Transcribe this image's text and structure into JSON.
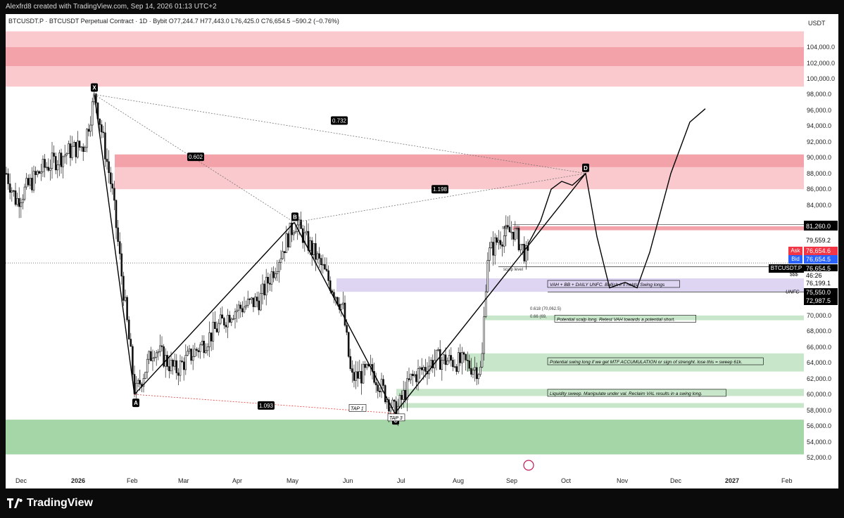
{
  "header": {
    "credit": "Alexfrd8 created with TradingView.com, Sep 14, 2026 01:13 UTC+2"
  },
  "chart_header": {
    "symbol_line": "BTCUSDT.P · BTCUSDT Perpetual Contract · 1D · Bybit  O77,244.7  H77,443.0  L76,425.0  C76,654.5  −590.2 (−0.76%)"
  },
  "price_axis": {
    "currency": "USDT",
    "ticks": [
      "104,000.0",
      "102,000.0",
      "100,000.0",
      "98,000.0",
      "96,000.0",
      "94,000.0",
      "92,000.0",
      "90,000.0",
      "88,000.0",
      "86,000.0",
      "84,000.0",
      "70,000.0",
      "68,000.0",
      "66,000.0",
      "64,000.0",
      "62,000.0",
      "60,000.0",
      "58,000.0",
      "56,000.0",
      "54,000.0",
      "52,000.0"
    ],
    "tags": [
      {
        "label": "81,499.9",
        "price": 81499.9,
        "bg": "#000000",
        "fg": "#ffffff"
      },
      {
        "label": "81,260.0",
        "price": 81260.0,
        "bg": "#000000",
        "fg": "#ffffff"
      },
      {
        "label": "79,559.2",
        "price": 79559.2,
        "bg": "#ffffff",
        "fg": "#000000"
      },
      {
        "label": "Ask",
        "price": 78200,
        "bg": "#f23645",
        "fg": "#ffffff",
        "value": "76,654.6"
      },
      {
        "label": "Bid",
        "price": 77100,
        "bg": "#2962ff",
        "fg": "#ffffff",
        "value": "76,654.5"
      },
      {
        "label": "76,654.5",
        "price": 76000,
        "bg": "#000000",
        "fg": "#ffffff"
      },
      {
        "label": "46:26",
        "price": 75050,
        "bg": "#ffffff",
        "fg": "#000000"
      },
      {
        "label": "76,199.1",
        "price": 74100,
        "bg": "#ffffff",
        "fg": "#000000"
      },
      {
        "label": "75,550.0",
        "price": 72950,
        "bg": "#000000",
        "fg": "#ffffff"
      },
      {
        "label": "72,987.5",
        "price": 71850,
        "bg": "#000000",
        "fg": "#ffffff"
      }
    ],
    "symbol_tag": "BTCUSDT.P"
  },
  "time_axis": {
    "labels": [
      "Dec",
      "2026",
      "Feb",
      "Mar",
      "Apr",
      "May",
      "Jun",
      "Jul",
      "Aug",
      "Sep",
      "Oct",
      "Nov",
      "Dec",
      "2027",
      "Feb"
    ]
  },
  "annotations": {
    "pattern_points": [
      "X",
      "A",
      "B",
      "C",
      "D"
    ],
    "ratios": [
      "0.602",
      "0.732",
      "1.198",
      "1.093"
    ],
    "taps": [
      "TAP 1",
      "TAP 3"
    ],
    "zone_notes": [
      "VAH + BB + DAILY UNFC. Bullish if it holds. Swing longs",
      "Potential scalp long. Retest VAH towards a potential short.",
      "Potential swing long if we get MTF ACCUMULATION or sign of strenght. lose this = sweep 61k.",
      "Liquidity sweep. Manipulate under val. Reclaim VAL results in a swing long."
    ],
    "fib_618": "0.618 (70,062.5)",
    "fib_66": "0.66 (69,",
    "unfc": "UNFC",
    "sss": "$$$",
    "sfp": "sfp",
    "scalp_level": "scalp level"
  },
  "chart_data": {
    "type": "candlestick",
    "ticker": "BTCUSDT.P",
    "timeframe": "1D",
    "exchange": "Bybit",
    "last_bar": {
      "open": 77244.7,
      "high": 77443.0,
      "low": 76425.0,
      "close": 76654.5,
      "change": -590.2,
      "change_pct": -0.76
    },
    "y_range": [
      50500,
      106500
    ],
    "months": [
      "Dec",
      "2026",
      "Feb",
      "Mar",
      "Apr",
      "May",
      "Jun",
      "Jul",
      "Aug",
      "Sep",
      "Oct",
      "Nov",
      "Dec",
      "2027",
      "Feb"
    ],
    "price_path": [
      [
        "Dec",
        88000
      ],
      [
        "Dec",
        85000
      ],
      [
        "2026",
        89000
      ],
      [
        "2026",
        92000
      ],
      [
        "2026",
        90500
      ],
      [
        "2026",
        98000
      ],
      [
        "Feb",
        87000
      ],
      [
        "Feb",
        60000
      ],
      [
        "Feb",
        65000
      ],
      [
        "Mar",
        62000
      ],
      [
        "Mar",
        66000
      ],
      [
        "Apr",
        70000
      ],
      [
        "Apr",
        71000
      ],
      [
        "May",
        81800
      ],
      [
        "May",
        77000
      ],
      [
        "Jun",
        70000
      ],
      [
        "Jun",
        62000
      ],
      [
        "Jul",
        58000
      ],
      [
        "Jul",
        60000
      ],
      [
        "Jul",
        63000
      ],
      [
        "Aug",
        64000
      ],
      [
        "Aug",
        63500
      ],
      [
        "Aug",
        77000
      ],
      [
        "Sep",
        79000
      ],
      [
        "Sep",
        76654.5
      ]
    ],
    "harmonic": {
      "X": 98000,
      "A": 60000,
      "B": 81800,
      "C": 57600,
      "D": 88000,
      "ratios": {
        "XB": 0.602,
        "XD": 0.732,
        "BD": 1.198,
        "AC": 1.093
      }
    },
    "zones": [
      {
        "name": "supply-outer",
        "low": 99000,
        "high": 106000,
        "color": "#f9c9ce"
      },
      {
        "name": "supply-inner",
        "low": 101600,
        "high": 104000,
        "color": "#f4a2aa"
      },
      {
        "name": "pattern-zone-outer",
        "low": 86000,
        "high": 90400,
        "color": "#f9c9ce"
      },
      {
        "name": "pattern-zone-inner",
        "low": 88800,
        "high": 90400,
        "color": "#f4a2aa"
      },
      {
        "name": "sfp-level",
        "low": 80800,
        "high": 81300,
        "color": "#f4a2aa"
      },
      {
        "name": "vah-zone",
        "low": 73000,
        "high": 74700,
        "color": "#ddd5f2"
      },
      {
        "name": "scalp-long",
        "low": 69400,
        "high": 70000,
        "color": "#c8e6c9"
      },
      {
        "name": "swing-long",
        "low": 62900,
        "high": 65200,
        "color": "#c8e6c9"
      },
      {
        "name": "liquidity-sweep",
        "low": 59800,
        "high": 60700,
        "color": "#c8e6c9"
      },
      {
        "name": "liq-lower",
        "low": 58300,
        "high": 58900,
        "color": "#c8e6c9"
      },
      {
        "name": "demand",
        "low": 52400,
        "high": 56800,
        "color": "#a5d6a7"
      }
    ],
    "projection": [
      [
        82000,
        "Sep"
      ],
      [
        88000,
        "Oct"
      ],
      [
        73500,
        "Oct"
      ],
      [
        73800,
        "Nov"
      ],
      [
        73500,
        "Nov"
      ],
      [
        90000,
        "Dec"
      ],
      [
        96200,
        "Dec"
      ]
    ]
  }
}
